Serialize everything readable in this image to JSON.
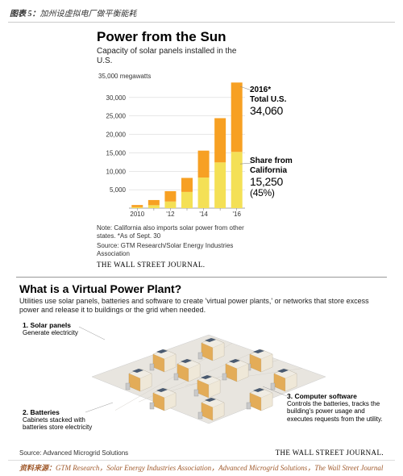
{
  "header": {
    "fig_label": "图表 5：",
    "fig_title": "加州设虚拟电厂做平衡能耗"
  },
  "chart": {
    "type": "stacked-bar",
    "title": "Power from the Sun",
    "subtitle": "Capacity of solar panels installed in the U.S.",
    "y_unit": "35,000 megawatts",
    "ylim": [
      0,
      35000
    ],
    "ytick_step": 5000,
    "ytick_labels": [
      "5,000",
      "10,000",
      "15,000",
      "20,000",
      "25,000",
      "30,000"
    ],
    "x_labels": [
      "2010",
      "",
      "'12",
      "",
      "'14",
      "",
      "'16"
    ],
    "california": [
      250,
      800,
      1800,
      4400,
      8300,
      12400,
      15250
    ],
    "other": [
      600,
      1400,
      2800,
      3800,
      7300,
      12000,
      18810
    ],
    "colors": {
      "ca": "#f4e056",
      "other": "#f7a023",
      "grid": "#d9d9d9",
      "axis": "#888888",
      "bg": "#ffffff"
    },
    "bar_width": 0.68,
    "annot1": {
      "heading": "2016*",
      "line2": "Total U.S.",
      "value": "34,060"
    },
    "annot2": {
      "heading": "Share from",
      "line2": "California",
      "value": "15,250",
      "pct": "(45%)"
    },
    "note": "Note: California also imports solar power from other states.   *As of Sept. 30",
    "source": "Source: GTM Research/Solar Energy Industries Association",
    "wsj": "THE WALL STREET JOURNAL.",
    "fontsize_title": 17,
    "fontsize_sub": 10,
    "fontsize_tick": 8,
    "fontsize_annot_head": 10,
    "fontsize_annot_val": 14
  },
  "vpp": {
    "title": "What is a Virtual Power Plant?",
    "subtitle": "Utilities use solar panels, batteries and software to create 'virtual power plants,' or networks that store excess power and release it to buildings or the grid when needed.",
    "callouts": [
      {
        "n": "1. Solar panels",
        "t": "Generate electricity"
      },
      {
        "n": "2. Batteries",
        "t": "Cabinets stacked with batteries store electricity"
      },
      {
        "n": "3. Computer software",
        "t": "Controls the batteries, tracks the building's power usage and executes requests from the utility."
      }
    ],
    "source": "Source: Advanced Microgrid Solutions",
    "wsj": "THE WALL STREET JOURNAL.",
    "colors": {
      "ground": "#e8e5df",
      "roof": "#f0ece3",
      "wall": "#e3ac58",
      "panel": "#4a5a70",
      "battery": "#c9c9c9"
    }
  },
  "footer": {
    "label": "资料来源：",
    "text": "GTM Research，Solar Energy Industries Association，Advanced Microgrid Solutions，The Wall Street Journal"
  }
}
